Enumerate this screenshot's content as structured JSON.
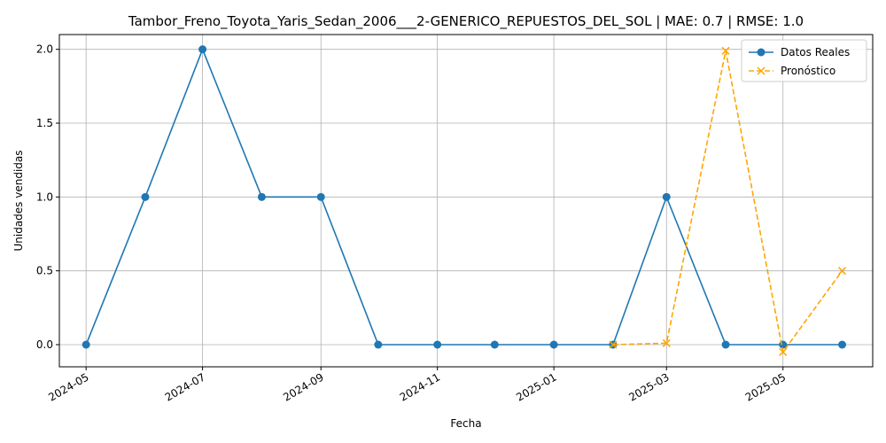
{
  "chart_data": {
    "type": "line",
    "title": "Tambor_Freno_Toyota_Yaris_Sedan_2006___2-GENERICO_REPUESTOS_DEL_SOL | MAE: 0.7 | RMSE: 1.0",
    "xlabel": "Fecha",
    "ylabel": "Unidades vendidas",
    "x_ticks": [
      "2024-05",
      "2024-07",
      "2024-09",
      "2024-11",
      "2025-01",
      "2025-03",
      "2025-05"
    ],
    "y_ticks": [
      "0.0",
      "0.5",
      "1.0",
      "1.5",
      "2.0"
    ],
    "ylim": [
      -0.15,
      2.1
    ],
    "xlim": [
      "2024-04-17",
      "2025-06-17"
    ],
    "grid": true,
    "legend_position": "upper right",
    "series": [
      {
        "name": "Datos Reales",
        "color": "#1f77b4",
        "line_style": "solid",
        "marker": "circle",
        "x": [
          "2024-05-01",
          "2024-06-01",
          "2024-07-01",
          "2024-08-01",
          "2024-09-01",
          "2024-10-01",
          "2024-11-01",
          "2024-12-01",
          "2025-01-01",
          "2025-02-01",
          "2025-03-01",
          "2025-04-01",
          "2025-05-01",
          "2025-06-01"
        ],
        "values": [
          0,
          1,
          2,
          1,
          1,
          0,
          0,
          0,
          0,
          0,
          1,
          0,
          0,
          0
        ]
      },
      {
        "name": "Pronóstico",
        "color": "#ffa500",
        "line_style": "dashed",
        "marker": "x",
        "x": [
          "2025-02-01",
          "2025-03-01",
          "2025-04-01",
          "2025-05-01",
          "2025-06-01"
        ],
        "values": [
          0.0,
          0.01,
          1.99,
          -0.05,
          0.5
        ]
      }
    ]
  }
}
